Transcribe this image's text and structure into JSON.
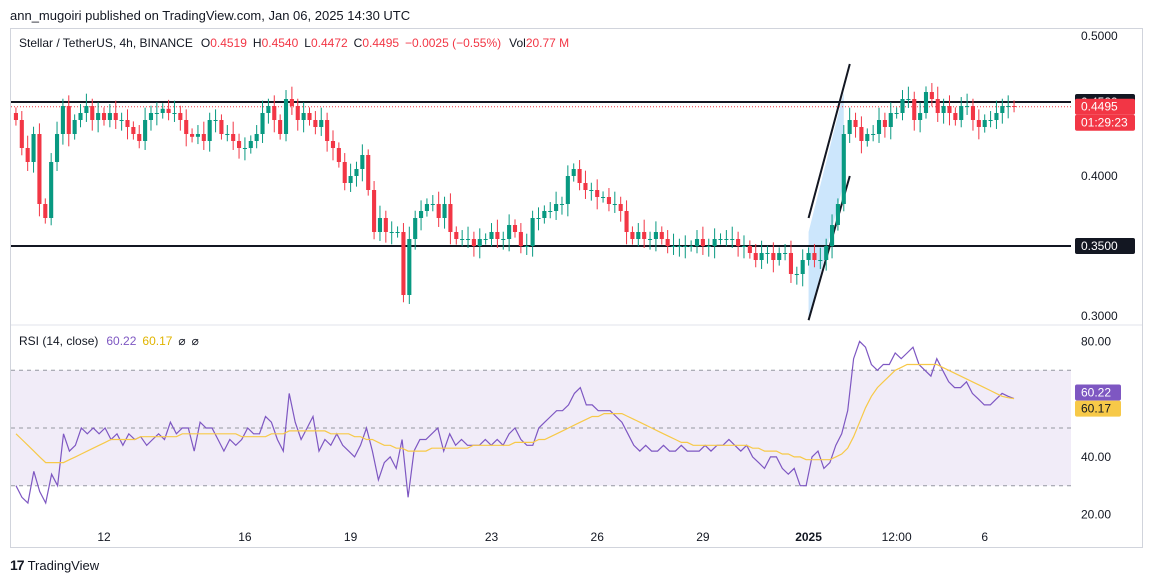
{
  "header": {
    "text": "ann_mugoiri published on TradingView.com, Jan 06, 2025 14:30 UTC"
  },
  "footer": {
    "brand": "TradingView",
    "logo_glyph": "17"
  },
  "colors": {
    "up": "#089981",
    "down": "#f23645",
    "rsi": "#7e57c2",
    "rsi_ma": "#f7c948",
    "channel_fill": "#bbdefb",
    "rsi_band": "#ede7f6",
    "grid_text": "#131722"
  },
  "chart_data": [
    {
      "type": "candlestick",
      "title": "Stellar / TetherUS, 4h, BINANCE",
      "ohlc_label": {
        "o": "O",
        "o_val": "0.4519",
        "h": "H",
        "h_val": "0.4540",
        "l": "L",
        "l_val": "0.4472",
        "c": "C",
        "c_val": "0.4495",
        "change": "−0.0025 (−0.55%)",
        "vol": "Vol",
        "vol_val": "20.77 M"
      },
      "ylim": [
        0.295,
        0.505
      ],
      "y_ticks": [
        "0.5000",
        "0.4000",
        "0.3000"
      ],
      "y_tick_values": [
        0.5,
        0.4,
        0.3
      ],
      "price_labels": [
        {
          "text": "0.4529",
          "value": 0.4529,
          "color": "#131722"
        },
        {
          "text": "0.4495",
          "value": 0.4495,
          "color": "#f23645"
        },
        {
          "text": "01:29:23",
          "value": 0.4495,
          "color": "#f23645",
          "sub": true
        },
        {
          "text": "0.3500",
          "value": 0.35,
          "color": "#131722"
        }
      ],
      "horizontal_lines": [
        0.4529,
        0.35
      ],
      "current_price": 0.4495,
      "x_ticks": [
        {
          "label": "12",
          "index": 15
        },
        {
          "label": "16",
          "index": 39
        },
        {
          "label": "19",
          "index": 57
        },
        {
          "label": "23",
          "index": 81
        },
        {
          "label": "26",
          "index": 99
        },
        {
          "label": "29",
          "index": 117
        },
        {
          "label": "2025",
          "index": 135,
          "bold": true
        },
        {
          "label": "12:00",
          "index": 150
        },
        {
          "label": "6",
          "index": 165
        }
      ],
      "closes": [
        0.44,
        0.42,
        0.41,
        0.43,
        0.38,
        0.37,
        0.41,
        0.43,
        0.45,
        0.43,
        0.44,
        0.445,
        0.45,
        0.44,
        0.445,
        0.44,
        0.445,
        0.44,
        0.44,
        0.435,
        0.43,
        0.425,
        0.44,
        0.445,
        0.445,
        0.448,
        0.445,
        0.445,
        0.44,
        0.43,
        0.428,
        0.43,
        0.425,
        0.44,
        0.44,
        0.43,
        0.43,
        0.425,
        0.42,
        0.42,
        0.425,
        0.43,
        0.445,
        0.45,
        0.44,
        0.43,
        0.455,
        0.45,
        0.44,
        0.445,
        0.44,
        0.435,
        0.44,
        0.425,
        0.42,
        0.41,
        0.395,
        0.4,
        0.405,
        0.415,
        0.39,
        0.36,
        0.37,
        0.36,
        0.36,
        0.36,
        0.315,
        0.355,
        0.37,
        0.375,
        0.38,
        0.38,
        0.37,
        0.38,
        0.36,
        0.355,
        0.355,
        0.355,
        0.35,
        0.355,
        0.355,
        0.36,
        0.355,
        0.355,
        0.365,
        0.36,
        0.35,
        0.35,
        0.37,
        0.37,
        0.375,
        0.375,
        0.38,
        0.38,
        0.4,
        0.405,
        0.395,
        0.39,
        0.39,
        0.385,
        0.385,
        0.38,
        0.38,
        0.375,
        0.36,
        0.355,
        0.36,
        0.355,
        0.355,
        0.36,
        0.355,
        0.35,
        0.35,
        0.35,
        0.35,
        0.35,
        0.355,
        0.35,
        0.35,
        0.355,
        0.355,
        0.355,
        0.355,
        0.35,
        0.35,
        0.345,
        0.34,
        0.345,
        0.345,
        0.34,
        0.345,
        0.345,
        0.33,
        0.33,
        0.34,
        0.345,
        0.34,
        0.34,
        0.35,
        0.365,
        0.38,
        0.43,
        0.44,
        0.435,
        0.425,
        0.43,
        0.43,
        0.44,
        0.435,
        0.445,
        0.445,
        0.455,
        0.455,
        0.44,
        0.445,
        0.46,
        0.455,
        0.445,
        0.45,
        0.445,
        0.44,
        0.45,
        0.45,
        0.44,
        0.435,
        0.44,
        0.44,
        0.445,
        0.45,
        0.45,
        0.4495
      ]
    },
    {
      "type": "line",
      "title": "RSI (14, close)",
      "legend_vals": [
        "60.22",
        "60.17"
      ],
      "legend_glyphs": [
        "⌀",
        "⌀"
      ],
      "ylim": [
        15,
        85
      ],
      "y_ticks": [
        "80.00",
        "40.00",
        "20.00"
      ],
      "y_tick_values": [
        80,
        40,
        20
      ],
      "band": [
        30,
        70
      ],
      "mid": 50,
      "series": [
        {
          "values": [
            30,
            26,
            24,
            35,
            28,
            24,
            34,
            30,
            48,
            42,
            44,
            50,
            48,
            50,
            48,
            50,
            46,
            48,
            44,
            48,
            46,
            47,
            44,
            46,
            48,
            46,
            52,
            48,
            50,
            50,
            42,
            52,
            50,
            50,
            46,
            42,
            46,
            44,
            46,
            50,
            48,
            48,
            54,
            52,
            46,
            42,
            62,
            52,
            46,
            50,
            54,
            42,
            46,
            44,
            48,
            44,
            42,
            40,
            44,
            50,
            42,
            32,
            38,
            40,
            36,
            46,
            26,
            42,
            46,
            46,
            48,
            50,
            42,
            48,
            44,
            46,
            44,
            44,
            44,
            46,
            44,
            46,
            44,
            48,
            50,
            46,
            44,
            44,
            50,
            52,
            54,
            56,
            56,
            58,
            62,
            64,
            58,
            58,
            56,
            56,
            56,
            54,
            52,
            48,
            44,
            42,
            44,
            42,
            42,
            44,
            42,
            42,
            44,
            42,
            42,
            42,
            44,
            42,
            44,
            44,
            46,
            44,
            42,
            44,
            40,
            38,
            36,
            40,
            40,
            36,
            34,
            36,
            30,
            30,
            40,
            42,
            36,
            38,
            44,
            48,
            56,
            74,
            80,
            78,
            72,
            70,
            72,
            72,
            76,
            74,
            76,
            78,
            72,
            70,
            68,
            74,
            70,
            66,
            64,
            64,
            66,
            62,
            60,
            58,
            58,
            60,
            62,
            61,
            60.22
          ]
        },
        {
          "values": [
            48,
            46,
            44,
            42,
            40,
            38,
            38,
            38,
            38,
            39,
            40,
            41,
            42,
            43,
            44,
            45,
            46,
            46,
            46,
            46,
            46,
            47,
            47,
            47,
            47,
            47,
            47,
            47,
            48,
            48,
            48,
            48,
            48,
            48,
            48,
            48,
            48,
            48,
            47,
            47,
            47,
            47,
            47,
            48,
            48,
            48,
            49,
            49,
            49,
            49,
            49,
            49,
            49,
            48,
            48,
            48,
            48,
            47,
            47,
            46,
            46,
            45,
            44,
            44,
            43,
            43,
            42,
            42,
            42,
            42,
            43,
            43,
            43,
            43,
            43,
            43,
            43,
            44,
            44,
            44,
            44,
            44,
            44,
            44,
            45,
            45,
            45,
            45,
            46,
            46,
            47,
            48,
            49,
            50,
            51,
            52,
            53,
            54,
            54,
            55,
            55,
            55,
            55,
            54,
            53,
            52,
            51,
            50,
            49,
            48,
            47,
            46,
            45,
            45,
            44,
            44,
            44,
            44,
            44,
            44,
            44,
            44,
            44,
            44,
            43,
            43,
            42,
            42,
            42,
            41,
            41,
            40,
            40,
            39,
            39,
            39,
            39,
            39,
            40,
            41,
            43,
            47,
            52,
            57,
            61,
            64,
            66,
            68,
            70,
            71,
            72,
            72,
            72,
            72,
            72,
            72,
            71,
            70,
            69,
            68,
            67,
            66,
            65,
            64,
            63,
            62,
            61,
            60.5,
            60.17
          ]
        }
      ]
    }
  ]
}
